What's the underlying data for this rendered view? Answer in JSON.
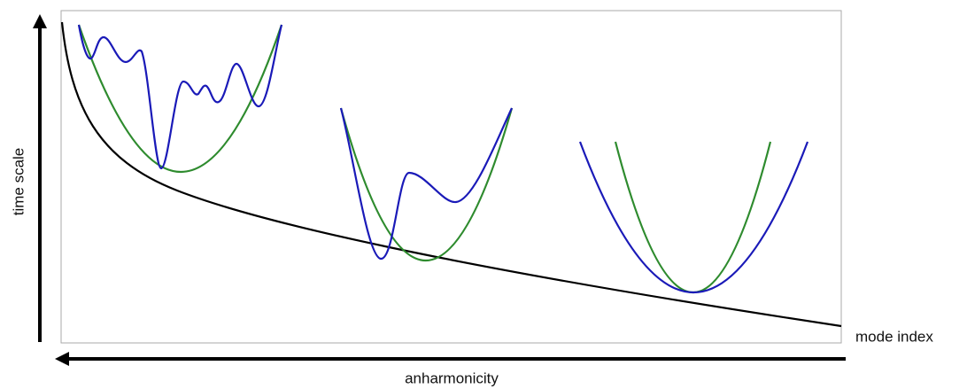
{
  "labels": {
    "y_axis": "time scale",
    "x_axis": "mode index",
    "arrow": "anharmonicity"
  }
}
